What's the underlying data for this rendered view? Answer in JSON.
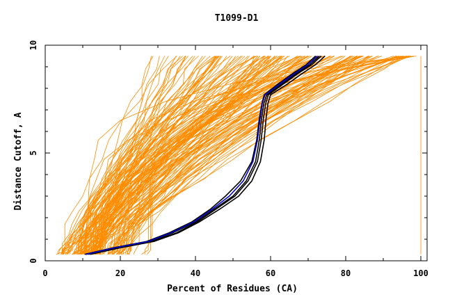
{
  "chart_data": {
    "type": "line",
    "title": "T1099-D1",
    "xlabel": "Percent of Residues (CA)",
    "ylabel": "Distance Cutoff, A",
    "xlim": [
      0,
      100
    ],
    "ylim": [
      0,
      10
    ],
    "x_ticks": [
      "0",
      "20",
      "40",
      "60",
      "80",
      "100"
    ],
    "y_ticks": [
      "0",
      "5",
      "10"
    ],
    "grid": false,
    "legend": "none",
    "colors": {
      "models": "#ff8c00",
      "highlight_black": "#000000",
      "highlight_blue": "#0000cd",
      "axes": "#000000"
    },
    "highlighted_series": [
      {
        "color": "#000000",
        "x": [
          10.5,
          18,
          27,
          33,
          39,
          44,
          48,
          52,
          55,
          56.3,
          57,
          57.7,
          58.3,
          62,
          66,
          69.5,
          72
        ],
        "y": [
          0.3,
          0.6,
          0.9,
          1.3,
          1.8,
          2.4,
          3.0,
          3.7,
          4.6,
          5.6,
          6.6,
          7.3,
          7.7,
          8.2,
          8.7,
          9.1,
          9.5
        ]
      },
      {
        "color": "#000000",
        "x": [
          11,
          19,
          28,
          34,
          40,
          45,
          50,
          53.5,
          56,
          57,
          57.6,
          58.2,
          59,
          63,
          67,
          70.5,
          73
        ],
        "y": [
          0.3,
          0.6,
          0.9,
          1.3,
          1.8,
          2.4,
          3.0,
          3.7,
          4.6,
          5.6,
          6.6,
          7.3,
          7.7,
          8.2,
          8.7,
          9.1,
          9.5
        ]
      },
      {
        "color": "#000000",
        "x": [
          11.5,
          19.5,
          28.5,
          35,
          40.5,
          45.5,
          50.5,
          54,
          56.5,
          57.5,
          58.1,
          58.7,
          59.4,
          63.4,
          67.4,
          71,
          73.5
        ],
        "y": [
          0.3,
          0.6,
          0.9,
          1.3,
          1.8,
          2.4,
          3.0,
          3.7,
          4.6,
          5.6,
          6.6,
          7.3,
          7.7,
          8.2,
          8.7,
          9.1,
          9.5
        ]
      },
      {
        "color": "#000000",
        "x": [
          12,
          20,
          29,
          35.5,
          41,
          46.5,
          51.5,
          55,
          57.3,
          58.3,
          58.8,
          59.3,
          60,
          64.5,
          68.5,
          72,
          74.5
        ],
        "y": [
          0.3,
          0.6,
          0.9,
          1.3,
          1.8,
          2.4,
          3.0,
          3.7,
          4.6,
          5.6,
          6.6,
          7.3,
          7.7,
          8.2,
          8.7,
          9.1,
          9.5
        ]
      },
      {
        "color": "#0000cd",
        "x": [
          10.8,
          18.5,
          27.5,
          33.5,
          39.5,
          44.5,
          49,
          52.7,
          55.3,
          56.5,
          57.2,
          57.8,
          58.5,
          62.5,
          66.5,
          70,
          72.5
        ],
        "y": [
          0.3,
          0.6,
          0.9,
          1.3,
          1.8,
          2.4,
          3.0,
          3.7,
          4.6,
          5.6,
          6.6,
          7.3,
          7.7,
          8.2,
          8.7,
          9.1,
          9.5
        ]
      }
    ],
    "background_models": {
      "description": "approx. 150 orange GDT curves spanning the plot region; y range 0.3 to 9.5",
      "groups": [
        {
          "x_at_bottom": [
            3.5,
            15
          ],
          "x_at_top": [
            26,
            65
          ],
          "count": 55
        },
        {
          "x_at_bottom": [
            8,
            22
          ],
          "x_at_top": [
            55,
            97
          ],
          "count": 85
        },
        {
          "x_at_bottom": [
            10,
            28
          ],
          "x_at_top": [
            96,
            100
          ],
          "count": 8
        }
      ]
    }
  }
}
